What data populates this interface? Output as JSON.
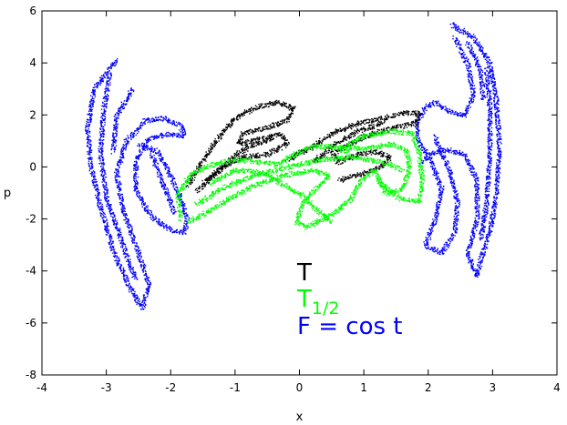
{
  "chart_data": {
    "type": "scatter",
    "title": "",
    "xlabel": "x",
    "ylabel": "p",
    "xlim": [
      -4,
      4
    ],
    "ylim": [
      -8,
      6
    ],
    "xticks": [
      -4,
      -3,
      -2,
      -1,
      0,
      1,
      2,
      3,
      4
    ],
    "yticks": [
      -8,
      -6,
      -4,
      -2,
      0,
      2,
      4,
      6
    ],
    "grid": false,
    "legend": "none",
    "series": [
      {
        "color": "#0000ff",
        "curves": [
          [
            [
              -2.85,
              4.15
            ],
            [
              -3.2,
              3.0
            ],
            [
              -3.3,
              1.5
            ],
            [
              -3.25,
              0.0
            ],
            [
              -3.1,
              -1.5
            ],
            [
              -2.9,
              -3.2
            ],
            [
              -2.65,
              -4.6
            ],
            [
              -2.45,
              -5.4
            ],
            [
              -2.35,
              -4.5
            ],
            [
              -2.55,
              -3.0
            ],
            [
              -2.75,
              -1.6
            ],
            [
              -2.85,
              -0.2
            ],
            [
              -2.7,
              1.0
            ],
            [
              -2.4,
              1.8
            ],
            [
              -2.1,
              1.9
            ],
            [
              -1.85,
              1.6
            ],
            [
              -1.8,
              1.2
            ],
            [
              -2.05,
              1.3
            ],
            [
              -2.35,
              1.1
            ],
            [
              -2.55,
              0.3
            ],
            [
              -2.55,
              -0.9
            ],
            [
              -2.3,
              -1.9
            ],
            [
              -2.0,
              -2.4
            ],
            [
              -1.8,
              -2.5
            ],
            [
              -1.75,
              -2.0
            ],
            [
              -1.9,
              -0.9
            ],
            [
              -2.2,
              0.6
            ],
            [
              -2.5,
              0.9
            ]
          ],
          [
            [
              -2.95,
              3.6
            ],
            [
              -3.05,
              2.2
            ],
            [
              -3.1,
              0.5
            ],
            [
              -3.0,
              -1.2
            ],
            [
              -2.75,
              -3.0
            ],
            [
              -2.55,
              -4.3
            ]
          ],
          [
            [
              -2.6,
              3.0
            ],
            [
              -2.85,
              2.0
            ],
            [
              -2.9,
              0.6
            ]
          ],
          [
            [
              -2.3,
              0.5
            ],
            [
              -2.1,
              -0.8
            ],
            [
              -1.95,
              -1.8
            ]
          ],
          [
            [
              2.35,
              5.5
            ],
            [
              2.7,
              5.0
            ],
            [
              2.95,
              4.0
            ],
            [
              3.05,
              2.5
            ],
            [
              3.1,
              0.8
            ],
            [
              3.05,
              -1.0
            ],
            [
              2.95,
              -2.5
            ],
            [
              2.8,
              -3.6
            ],
            [
              2.75,
              -4.2
            ],
            [
              2.6,
              -3.3
            ],
            [
              2.75,
              -2.0
            ],
            [
              2.75,
              -0.5
            ],
            [
              2.55,
              0.5
            ],
            [
              2.3,
              0.7
            ],
            [
              2.0,
              0.5
            ],
            [
              1.85,
              0.9
            ],
            [
              1.8,
              1.7
            ],
            [
              1.95,
              2.3
            ],
            [
              2.1,
              2.5
            ],
            [
              2.3,
              2.2
            ],
            [
              2.55,
              2.0
            ],
            [
              2.7,
              2.8
            ],
            [
              2.6,
              4.0
            ],
            [
              2.4,
              5.0
            ]
          ],
          [
            [
              2.1,
              1.2
            ],
            [
              2.3,
              0.0
            ],
            [
              2.45,
              -1.3
            ],
            [
              2.4,
              -2.5
            ],
            [
              2.2,
              -3.3
            ],
            [
              1.95,
              -3.0
            ],
            [
              2.1,
              -2.0
            ],
            [
              2.2,
              -0.8
            ],
            [
              2.0,
              0.4
            ],
            [
              1.9,
              0.2
            ]
          ],
          [
            [
              2.9,
              3.8
            ],
            [
              2.95,
              2.3
            ],
            [
              2.95,
              0.6
            ],
            [
              2.9,
              -1.4
            ],
            [
              2.8,
              -2.8
            ]
          ],
          [
            [
              2.6,
              4.8
            ],
            [
              2.8,
              3.8
            ],
            [
              2.85,
              2.6
            ]
          ]
        ]
      },
      {
        "color": "#000000",
        "curves": [
          [
            [
              -1.75,
              -0.7
            ],
            [
              -1.5,
              0.3
            ],
            [
              -1.25,
              1.2
            ],
            [
              -1.0,
              1.9
            ],
            [
              -0.7,
              2.3
            ],
            [
              -0.35,
              2.5
            ],
            [
              -0.1,
              2.3
            ],
            [
              -0.2,
              1.8
            ],
            [
              -0.55,
              1.5
            ],
            [
              -0.9,
              1.3
            ],
            [
              -0.95,
              0.9
            ],
            [
              -0.6,
              1.1
            ],
            [
              -0.3,
              1.3
            ],
            [
              -0.2,
              0.9
            ],
            [
              -0.5,
              0.5
            ],
            [
              -0.9,
              0.4
            ],
            [
              -1.2,
              0.0
            ],
            [
              -1.5,
              -0.6
            ]
          ],
          [
            [
              -1.6,
              -0.9
            ],
            [
              -1.3,
              -0.2
            ],
            [
              -1.0,
              0.5
            ],
            [
              -0.7,
              0.9
            ],
            [
              -0.4,
              1.1
            ]
          ],
          [
            [
              -0.2,
              0.3
            ],
            [
              0.2,
              0.8
            ],
            [
              0.5,
              1.3
            ],
            [
              0.9,
              1.7
            ],
            [
              1.3,
              1.9
            ],
            [
              1.6,
              2.1
            ],
            [
              1.85,
              2.1
            ],
            [
              1.8,
              1.7
            ],
            [
              1.4,
              1.5
            ],
            [
              1.0,
              1.2
            ],
            [
              0.7,
              0.8
            ],
            [
              0.5,
              0.5
            ],
            [
              0.6,
              0.2
            ],
            [
              0.9,
              0.5
            ],
            [
              1.2,
              0.6
            ],
            [
              1.4,
              0.4
            ],
            [
              1.25,
              0.0
            ],
            [
              0.9,
              -0.3
            ],
            [
              0.6,
              -0.5
            ]
          ],
          [
            [
              0.2,
              0.2
            ],
            [
              0.55,
              0.9
            ],
            [
              0.9,
              1.4
            ],
            [
              1.3,
              1.7
            ]
          ]
        ]
      },
      {
        "color": "#00ff00",
        "curves": [
          [
            [
              -1.85,
              -2.0
            ],
            [
              -1.9,
              -1.0
            ],
            [
              -1.7,
              -0.3
            ],
            [
              -1.4,
              0.1
            ],
            [
              -1.0,
              0.3
            ],
            [
              -0.6,
              0.2
            ],
            [
              -0.35,
              0.1
            ],
            [
              -0.1,
              0.5
            ],
            [
              0.2,
              0.8
            ],
            [
              0.5,
              0.8
            ],
            [
              0.75,
              0.6
            ],
            [
              0.75,
              0.9
            ],
            [
              1.0,
              1.2
            ],
            [
              1.4,
              1.4
            ],
            [
              1.75,
              1.3
            ],
            [
              1.85,
              0.6
            ],
            [
              1.9,
              -0.5
            ],
            [
              1.85,
              -1.3
            ],
            [
              1.55,
              -1.2
            ],
            [
              1.3,
              -0.7
            ],
            [
              1.15,
              -0.1
            ],
            [
              0.95,
              -0.5
            ],
            [
              0.8,
              -1.2
            ],
            [
              0.5,
              -1.8
            ],
            [
              0.1,
              -2.3
            ],
            [
              -0.05,
              -2.1
            ],
            [
              0.05,
              -1.3
            ],
            [
              0.3,
              -0.7
            ],
            [
              0.45,
              -0.3
            ],
            [
              0.2,
              -0.1
            ],
            [
              -0.25,
              -0.3
            ],
            [
              -0.7,
              -0.7
            ],
            [
              -1.1,
              -1.2
            ],
            [
              -1.5,
              -1.8
            ],
            [
              -1.75,
              -2.1
            ]
          ],
          [
            [
              -1.6,
              -1.4
            ],
            [
              -1.2,
              -0.8
            ],
            [
              -0.7,
              -0.3
            ],
            [
              -0.2,
              0.0
            ],
            [
              0.3,
              0.3
            ],
            [
              0.8,
              0.4
            ],
            [
              1.3,
              0.2
            ],
            [
              1.6,
              -0.1
            ]
          ],
          [
            [
              -1.4,
              -0.6
            ],
            [
              -1.0,
              -0.1
            ],
            [
              -0.6,
              -0.2
            ],
            [
              -0.3,
              -0.6
            ],
            [
              0.0,
              -1.0
            ],
            [
              0.25,
              -1.6
            ],
            [
              0.5,
              -2.1
            ]
          ],
          [
            [
              0.6,
              0.8
            ],
            [
              1.0,
              0.7
            ],
            [
              1.4,
              0.9
            ],
            [
              1.65,
              0.7
            ],
            [
              1.7,
              0.0
            ],
            [
              1.6,
              -0.8
            ],
            [
              1.35,
              -1.0
            ],
            [
              1.2,
              -0.4
            ]
          ]
        ]
      }
    ],
    "annotations": [
      {
        "label": "T",
        "color": "#000000"
      },
      {
        "label": "T",
        "subscript": "1/2",
        "color": "#00ff00"
      },
      {
        "label": "F = cos t",
        "color": "#0000ff"
      }
    ]
  }
}
